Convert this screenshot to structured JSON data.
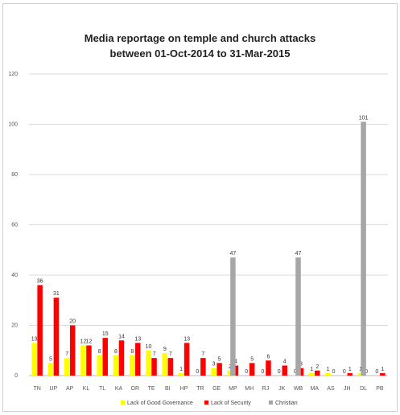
{
  "chart_data": {
    "type": "bar",
    "title_line1": "Media reportage on temple and church attacks",
    "title_line2": "between 01-Oct-2014 to 31-Mar-2015",
    "categories": [
      "TN",
      "UP",
      "AP",
      "KL",
      "TL",
      "KA",
      "OR",
      "TE",
      "BI",
      "HP",
      "TR",
      "GE",
      "MP",
      "MH",
      "RJ",
      "JK",
      "WB",
      "MA",
      "AS",
      "JH",
      "DL",
      "PB"
    ],
    "ylim": [
      0,
      120
    ],
    "yticks": [
      0,
      20,
      40,
      60,
      80,
      100,
      120
    ],
    "grid": true,
    "legend_position": "bottom",
    "series": [
      {
        "name": "Lack of Good Governance",
        "color": "#ffff00",
        "values": [
          13,
          5,
          7,
          12,
          8,
          8,
          8,
          10,
          9,
          1,
          0,
          3,
          2,
          0,
          0,
          0,
          0,
          1,
          1,
          0,
          1,
          0
        ]
      },
      {
        "name": "Lack of Security",
        "color": "#ff0000",
        "values": [
          36,
          31,
          20,
          12,
          15,
          14,
          13,
          7,
          7,
          13,
          7,
          5,
          4,
          5,
          6,
          4,
          3,
          2,
          0,
          1,
          0,
          1
        ]
      },
      {
        "name": "Christian",
        "color": "#a6a6a6",
        "values": [
          0,
          0,
          0,
          0,
          0,
          0,
          0,
          0,
          0,
          0,
          0,
          0,
          47,
          0,
          0,
          0,
          47,
          0,
          0,
          0,
          101,
          0
        ]
      }
    ]
  }
}
